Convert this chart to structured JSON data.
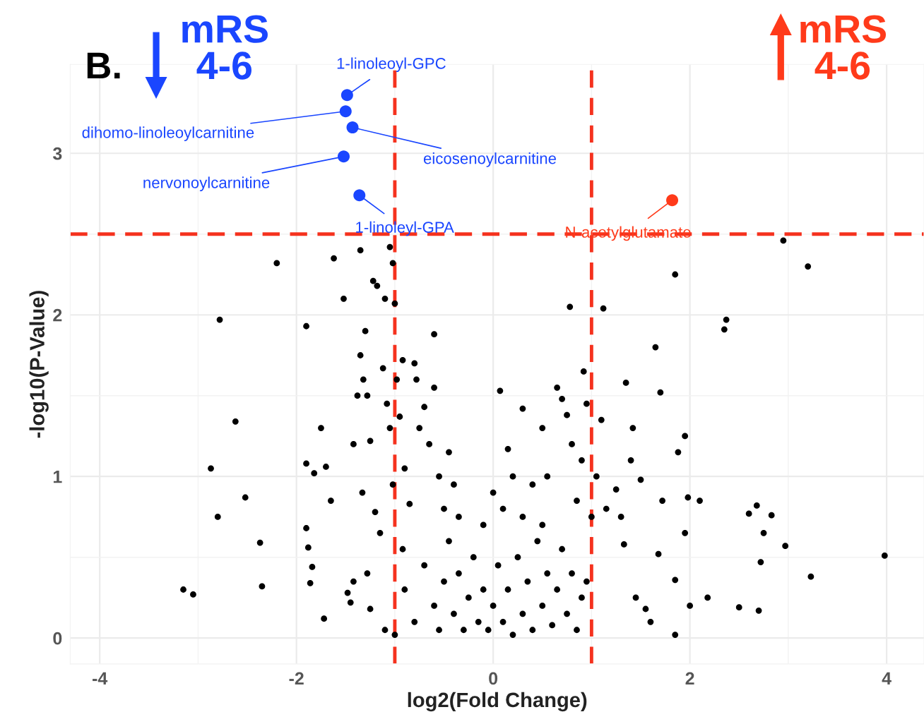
{
  "chart_data": {
    "type": "scatter",
    "xlabel": "log2(Fold Change)",
    "ylabel": "-log10(P-Value)",
    "xlim": [
      -4.3,
      4.38
    ],
    "ylim": [
      -0.16,
      3.55
    ],
    "xticks": [
      -4,
      -2,
      0,
      2,
      4
    ],
    "yticks": [
      0,
      1,
      2,
      3
    ],
    "grid": true,
    "marker": "circle",
    "ref_lines": [
      {
        "axis": "x",
        "value": -1,
        "color": "#f5321e",
        "line_style": "dashed"
      },
      {
        "axis": "x",
        "value": 1,
        "color": "#f5321e",
        "line_style": "dashed"
      },
      {
        "axis": "y",
        "value": 2.5,
        "color": "#f5321e",
        "line_style": "dashed"
      }
    ],
    "series": [
      {
        "color": "#000000",
        "x": [
          -3.15,
          -3.05,
          -2.87,
          -2.78,
          -2.8,
          -2.62,
          -2.52,
          -2.37,
          -2.35,
          -2.2,
          -1.9,
          -1.9,
          -1.9,
          -1.88,
          -1.86,
          -1.84,
          -1.82,
          -1.75,
          -1.72,
          -1.7,
          -1.65,
          -1.62,
          -1.52,
          -1.48,
          -1.45,
          -1.42,
          -1.42,
          -1.38,
          -1.35,
          -1.35,
          -1.33,
          -1.32,
          -1.3,
          -1.28,
          -1.28,
          -1.25,
          -1.25,
          -1.22,
          -1.18,
          -1.2,
          -1.15,
          -1.12,
          -1.1,
          -1.08,
          -1.05,
          -1.02,
          -1.0,
          -1.05,
          -1.02,
          -0.98,
          -0.95,
          -0.92,
          -0.92,
          -0.9,
          -0.85,
          -0.8,
          -0.78,
          -0.75,
          -0.7,
          -0.65,
          -0.6,
          -0.6,
          -0.55,
          -0.5,
          -0.45,
          -0.4,
          -0.35,
          -1.0,
          -1.1,
          -0.9,
          -0.8,
          -0.7,
          -0.6,
          -0.55,
          -0.5,
          -0.45,
          -0.4,
          -0.35,
          -0.3,
          -0.25,
          -0.2,
          -0.15,
          -0.1,
          -0.05,
          0,
          0.05,
          0.1,
          0.15,
          0.2,
          0.25,
          0.3,
          0.35,
          0.4,
          0.45,
          0.5,
          0.55,
          0.6,
          0.65,
          0.7,
          0.75,
          0.8,
          0.85,
          0.9,
          0.95,
          -0.1,
          0,
          0.1,
          0.2,
          0.3,
          0.4,
          0.5,
          0.07,
          0.15,
          0.3,
          0.5,
          0.55,
          0.65,
          0.7,
          0.75,
          0.78,
          0.8,
          0.9,
          0.92,
          0.95,
          0.85,
          1.0,
          1.05,
          1.1,
          1.12,
          1.15,
          1.25,
          1.3,
          1.33,
          1.35,
          1.4,
          1.42,
          1.45,
          1.5,
          1.55,
          1.6,
          1.65,
          1.68,
          1.7,
          1.72,
          1.85,
          1.85,
          1.85,
          1.88,
          1.95,
          1.95,
          1.98,
          2.0,
          2.1,
          2.18,
          2.35,
          2.37,
          2.5,
          2.6,
          2.68,
          2.7,
          2.72,
          2.75,
          2.83,
          2.95,
          2.97,
          3.2,
          3.23,
          3.98
        ],
        "values": [
          0.3,
          0.27,
          1.05,
          1.97,
          0.75,
          1.34,
          0.87,
          0.59,
          0.32,
          2.32,
          1.93,
          1.08,
          0.68,
          0.56,
          0.34,
          0.44,
          1.02,
          1.3,
          0.12,
          1.06,
          0.85,
          2.35,
          2.1,
          0.28,
          0.22,
          1.2,
          0.35,
          1.5,
          2.4,
          1.75,
          0.9,
          1.6,
          1.9,
          0.4,
          1.5,
          1.22,
          0.18,
          2.21,
          2.18,
          0.78,
          0.65,
          1.67,
          2.1,
          1.45,
          2.42,
          2.32,
          2.07,
          1.3,
          0.95,
          1.6,
          1.37,
          1.72,
          0.55,
          1.05,
          0.83,
          1.7,
          1.6,
          1.3,
          1.43,
          1.2,
          1.88,
          1.55,
          1.0,
          0.8,
          1.15,
          0.95,
          0.75,
          0.02,
          0.05,
          0.3,
          0.1,
          0.45,
          0.2,
          0.05,
          0.35,
          0.6,
          0.15,
          0.4,
          0.05,
          0.25,
          0.5,
          0.1,
          0.3,
          0.05,
          0.2,
          0.45,
          0.1,
          0.3,
          0.02,
          0.5,
          0.15,
          0.35,
          0.05,
          0.6,
          0.2,
          0.4,
          0.08,
          0.3,
          0.55,
          0.15,
          0.4,
          0.05,
          0.25,
          0.35,
          0.7,
          0.9,
          0.8,
          1.0,
          0.75,
          0.95,
          0.7,
          1.53,
          1.17,
          1.42,
          1.3,
          1.0,
          1.55,
          1.48,
          1.38,
          2.05,
          1.2,
          1.1,
          1.65,
          1.45,
          0.85,
          0.75,
          1.0,
          1.35,
          2.04,
          0.8,
          0.92,
          0.75,
          0.58,
          1.58,
          1.1,
          1.3,
          0.25,
          0.98,
          0.18,
          0.1,
          1.8,
          0.52,
          1.52,
          0.85,
          2.25,
          0.36,
          0.02,
          1.15,
          1.25,
          0.65,
          0.87,
          0.2,
          0.85,
          0.25,
          1.91,
          1.97,
          0.19,
          0.77,
          0.82,
          0.17,
          0.47,
          0.65,
          0.76,
          2.46,
          0.57,
          2.3,
          0.38,
          0.51
        ]
      },
      {
        "color": "#1a46ff",
        "x": [
          -1.485,
          -1.5,
          -1.43,
          -1.52,
          -1.36
        ],
        "values": [
          3.36,
          3.26,
          3.16,
          2.98,
          2.74
        ]
      },
      {
        "color": "#ff3a1a",
        "x": [
          1.82
        ],
        "values": [
          2.71
        ]
      }
    ],
    "annotations": [
      {
        "text": "1-linoleoyl-GPC",
        "x": -1.485,
        "y": 3.36
      },
      {
        "text": "dihomo-linoleoylcarnitine",
        "x": -1.5,
        "y": 3.26
      },
      {
        "text": "eicosenoylcarnitine",
        "x": -1.43,
        "y": 3.16
      },
      {
        "text": "nervonoylcarnitine",
        "x": -1.52,
        "y": 2.98
      },
      {
        "text": "1-linoleyl-GPA",
        "x": -1.36,
        "y": 2.74
      },
      {
        "text": "N-acetylglutamate",
        "x": 1.82,
        "y": 2.71
      },
      "B.",
      "mRS\n4-6",
      "mRS\n4-6"
    ]
  }
}
